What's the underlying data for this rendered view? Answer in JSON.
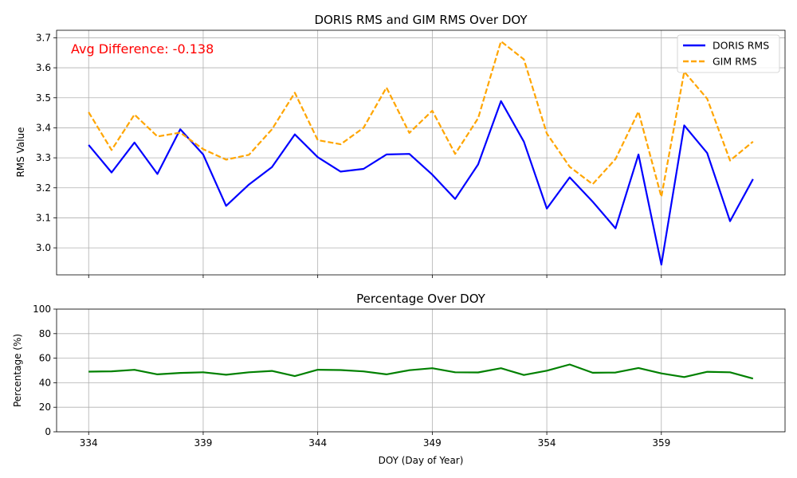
{
  "chart_data": [
    {
      "type": "line",
      "title": "DORIS RMS and GIM RMS Over DOY",
      "xlabel": "",
      "ylabel": "RMS Value",
      "xlim": [
        332.6,
        364.4
      ],
      "ylim": [
        2.91,
        3.725
      ],
      "yticks": [
        "3.0",
        "3.1",
        "3.2",
        "3.3",
        "3.4",
        "3.5",
        "3.6",
        "3.7"
      ],
      "grid": true,
      "legend_position": "top-right",
      "annotation": "Avg Difference: -0.138",
      "annotation_color": "#ff0000",
      "x": [
        334,
        335,
        336,
        337,
        338,
        339,
        340,
        341,
        342,
        343,
        344,
        345,
        346,
        347,
        348,
        349,
        350,
        351,
        352,
        353,
        354,
        355,
        356,
        357,
        358,
        359,
        360,
        361,
        362,
        363
      ],
      "series": [
        {
          "name": "DORIS RMS",
          "color": "#0000ff",
          "style": "solid",
          "values": [
            3.343,
            3.251,
            3.351,
            3.246,
            3.395,
            3.311,
            3.14,
            3.211,
            3.269,
            3.378,
            3.302,
            3.254,
            3.263,
            3.311,
            3.313,
            3.244,
            3.163,
            3.278,
            3.489,
            3.354,
            3.131,
            3.235,
            3.154,
            3.065,
            3.311,
            2.944,
            3.408,
            3.316,
            3.089,
            3.229
          ]
        },
        {
          "name": "GIM RMS",
          "color": "#ffa500",
          "style": "dashed",
          "values": [
            3.452,
            3.326,
            3.444,
            3.371,
            3.384,
            3.329,
            3.294,
            3.31,
            3.395,
            3.517,
            3.359,
            3.345,
            3.4,
            3.534,
            3.383,
            3.457,
            3.313,
            3.432,
            3.688,
            3.628,
            3.381,
            3.27,
            3.212,
            3.296,
            3.454,
            3.17,
            3.587,
            3.497,
            3.291,
            3.354
          ]
        }
      ]
    },
    {
      "type": "line",
      "title": "Percentage Over DOY",
      "xlabel": "DOY (Day of Year)",
      "ylabel": "Percentage (%)",
      "xlim": [
        332.6,
        364.4
      ],
      "ylim": [
        0,
        100
      ],
      "xticks": [
        "334",
        "339",
        "344",
        "349",
        "354",
        "359"
      ],
      "yticks": [
        "0",
        "20",
        "40",
        "60",
        "80",
        "100"
      ],
      "grid": true,
      "x": [
        334,
        335,
        336,
        337,
        338,
        339,
        340,
        341,
        342,
        343,
        344,
        345,
        346,
        347,
        348,
        349,
        350,
        351,
        352,
        353,
        354,
        355,
        356,
        357,
        358,
        359,
        360,
        361,
        362,
        363
      ],
      "series": [
        {
          "color": "#008000",
          "style": "solid",
          "values": [
            49.0,
            49.3,
            50.5,
            46.8,
            48.0,
            48.5,
            46.5,
            48.5,
            49.6,
            45.4,
            50.6,
            50.3,
            49.2,
            46.8,
            50.2,
            51.8,
            48.5,
            48.4,
            51.8,
            46.3,
            49.8,
            54.9,
            48.1,
            48.3,
            52.0,
            47.6,
            44.6,
            48.9,
            48.5,
            43.4
          ]
        }
      ]
    }
  ]
}
